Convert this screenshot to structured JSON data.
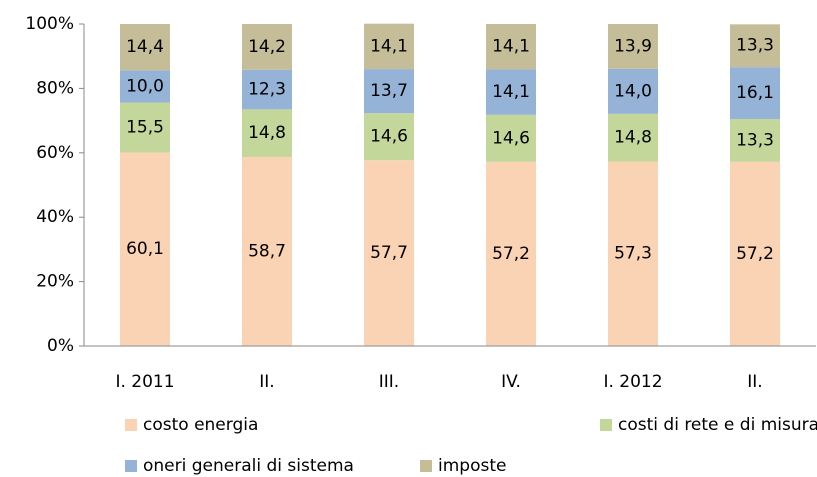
{
  "chart_data": {
    "type": "stacked_bar",
    "categories": [
      "I. 2011",
      "II.",
      "III.",
      "IV.",
      "I. 2012",
      "II."
    ],
    "series": [
      {
        "name": "costo energia",
        "color": "#fad3b4",
        "values": [
          60.1,
          58.7,
          57.7,
          57.2,
          57.3,
          57.2
        ],
        "value_labels": [
          "60,1",
          "58,7",
          "57,7",
          "57,2",
          "57,3",
          "57,2"
        ]
      },
      {
        "name": "costi di rete e di misura",
        "color": "#c4d79b",
        "values": [
          15.5,
          14.8,
          14.6,
          14.6,
          14.8,
          13.3
        ],
        "value_labels": [
          "15,5",
          "14,8",
          "14,6",
          "14,6",
          "14,8",
          "13,3"
        ]
      },
      {
        "name": "oneri generali di sistema",
        "color": "#95b3d7",
        "values": [
          10.0,
          12.3,
          13.7,
          14.1,
          14.0,
          16.1
        ],
        "value_labels": [
          "10,0",
          "12,3",
          "13,7",
          "14,1",
          "14,0",
          "16,1"
        ]
      },
      {
        "name": "imposte",
        "color": "#c4bd97",
        "values": [
          14.4,
          14.2,
          14.1,
          14.1,
          13.9,
          13.3
        ],
        "value_labels": [
          "14,4",
          "14,2",
          "14,1",
          "14,1",
          "13,9",
          "13,3"
        ]
      }
    ],
    "ylim": [
      0,
      100
    ],
    "yticks": [
      {
        "value": 0,
        "label": "0%"
      },
      {
        "value": 20,
        "label": "20%"
      },
      {
        "value": 40,
        "label": "40%"
      },
      {
        "value": 60,
        "label": "60%"
      },
      {
        "value": 80,
        "label": "80%"
      },
      {
        "value": 100,
        "label": "100%"
      }
    ],
    "grid": false
  }
}
